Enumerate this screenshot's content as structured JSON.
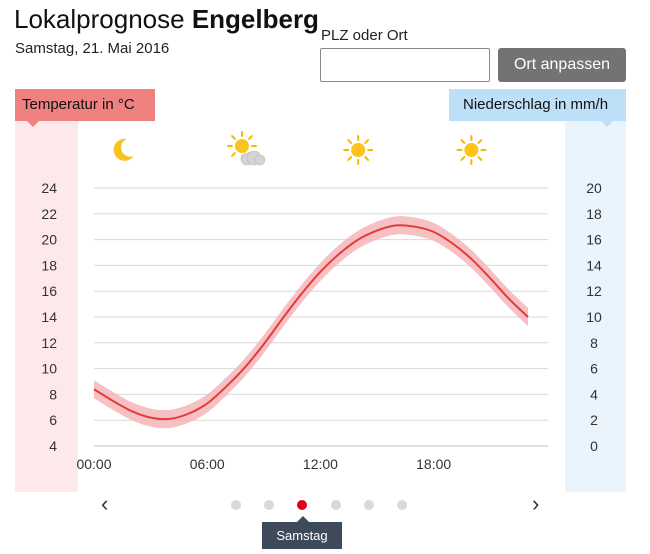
{
  "header": {
    "title_prefix": "Lokalprognose",
    "title_location": "Engelberg",
    "date": "Samstag, 21. Mai 2016"
  },
  "search": {
    "label": "PLZ oder Ort",
    "value": "",
    "placeholder": "",
    "button_label": "Ort anpassen"
  },
  "chart_data": {
    "type": "line",
    "left_axis_label": "Temperatur in °C",
    "right_axis_label": "Niederschlag in mm/h",
    "left_ylim": [
      4,
      24
    ],
    "left_ticks": [
      "24",
      "22",
      "20",
      "18",
      "16",
      "14",
      "12",
      "10",
      "8",
      "6",
      "4"
    ],
    "right_ylim": [
      0,
      20
    ],
    "right_ticks": [
      "20",
      "18",
      "16",
      "14",
      "12",
      "10",
      "8",
      "6",
      "4",
      "2",
      "0"
    ],
    "x_range_hours": [
      0,
      23
    ],
    "x_ticks": [
      {
        "label": "00:00",
        "hour": 0
      },
      {
        "label": "06:00",
        "hour": 6
      },
      {
        "label": "12:00",
        "hour": 12
      },
      {
        "label": "18:00",
        "hour": 18
      }
    ],
    "grid": true,
    "series": [
      {
        "x": [
          0,
          1,
          2,
          3,
          4,
          5,
          6,
          7,
          8,
          9,
          10,
          11,
          12,
          13,
          14,
          15,
          16,
          17,
          18,
          19,
          20,
          21,
          22,
          23
        ],
        "values": [
          8.4,
          7.5,
          6.7,
          6.2,
          6.1,
          6.5,
          7.3,
          8.6,
          10.1,
          11.9,
          13.9,
          15.8,
          17.5,
          18.9,
          20.0,
          20.7,
          21.1,
          21.0,
          20.6,
          19.7,
          18.5,
          17.0,
          15.4,
          14.0
        ],
        "band": 0.7,
        "color": "#e23b3b",
        "band_color": "#f6b6b8"
      }
    ],
    "weather_icons": [
      {
        "icon": "moon-icon",
        "hour": 2
      },
      {
        "icon": "sun-cloud-icon",
        "hour": 8
      },
      {
        "icon": "sun-icon",
        "hour": 14
      },
      {
        "icon": "sun-icon",
        "hour": 20
      }
    ]
  },
  "pager": {
    "prev_icon": "‹",
    "next_icon": "›",
    "dot_count": 6,
    "active_dot": 2,
    "active_label": "Samstag"
  },
  "colors": {
    "temperature": "#f08181",
    "precipitation": "#bde0f8",
    "line": "#e23b3b",
    "active_dot": "#e0001b"
  }
}
